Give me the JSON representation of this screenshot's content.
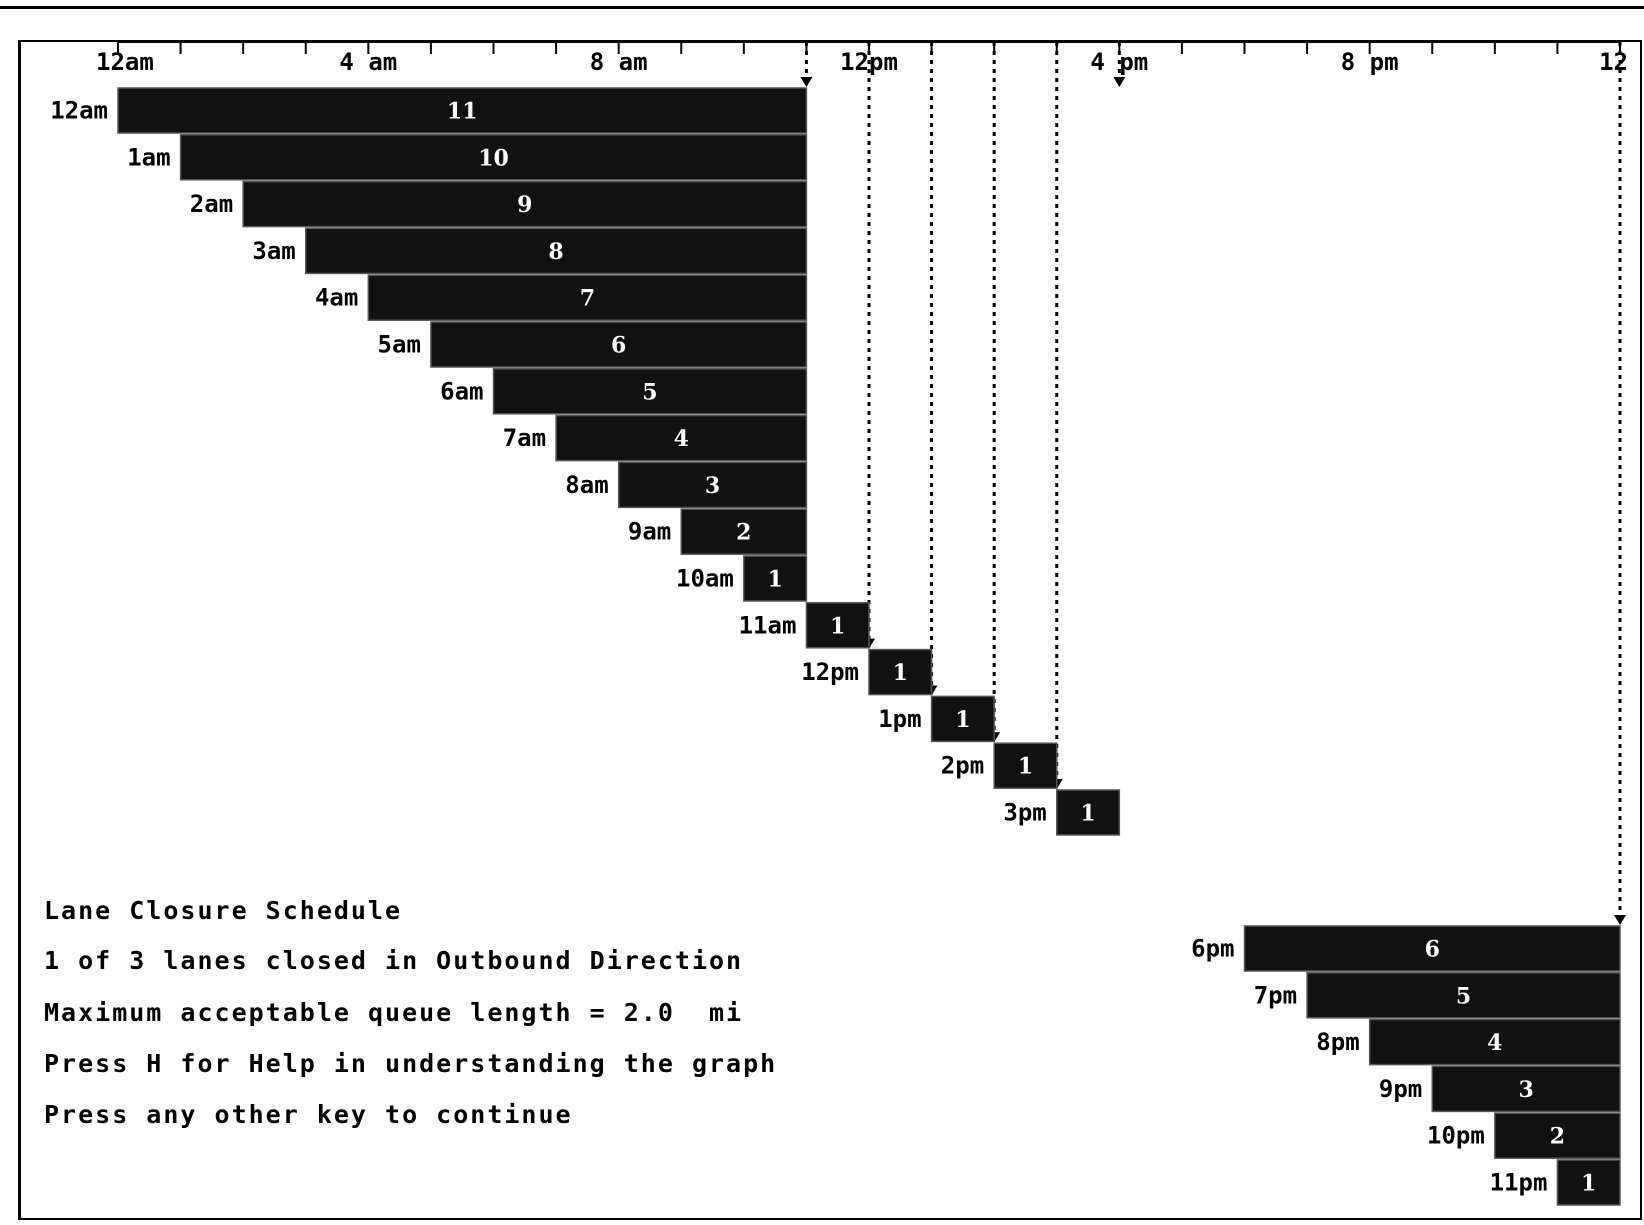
{
  "chart_data": {
    "type": "bar",
    "x_axis": {
      "unit": "hours",
      "range": [
        0,
        24
      ],
      "tick_labels": [
        {
          "label": "12am",
          "hour": 0
        },
        {
          "label": "4 am",
          "hour": 4
        },
        {
          "label": "8 am",
          "hour": 8
        },
        {
          "label": "12pm",
          "hour": 12
        },
        {
          "label": "4 pm",
          "hour": 16
        },
        {
          "label": "8 pm",
          "hour": 20
        },
        {
          "label": "12",
          "hour": 24
        }
      ]
    },
    "bars": [
      {
        "label": "12am",
        "start_hour": 0,
        "end_hour": 11,
        "value": "11"
      },
      {
        "label": "1am",
        "start_hour": 1,
        "end_hour": 11,
        "value": "10"
      },
      {
        "label": "2am",
        "start_hour": 2,
        "end_hour": 11,
        "value": "9"
      },
      {
        "label": "3am",
        "start_hour": 3,
        "end_hour": 11,
        "value": "8"
      },
      {
        "label": "4am",
        "start_hour": 4,
        "end_hour": 11,
        "value": "7"
      },
      {
        "label": "5am",
        "start_hour": 5,
        "end_hour": 11,
        "value": "6"
      },
      {
        "label": "6am",
        "start_hour": 6,
        "end_hour": 11,
        "value": "5"
      },
      {
        "label": "7am",
        "start_hour": 7,
        "end_hour": 11,
        "value": "4"
      },
      {
        "label": "8am",
        "start_hour": 8,
        "end_hour": 11,
        "value": "3"
      },
      {
        "label": "9am",
        "start_hour": 9,
        "end_hour": 11,
        "value": "2"
      },
      {
        "label": "10am",
        "start_hour": 10,
        "end_hour": 11,
        "value": "1"
      },
      {
        "label": "11am",
        "start_hour": 11,
        "end_hour": 12,
        "value": "1"
      },
      {
        "label": "12pm",
        "start_hour": 12,
        "end_hour": 13,
        "value": "1"
      },
      {
        "label": "1pm",
        "start_hour": 13,
        "end_hour": 14,
        "value": "1"
      },
      {
        "label": "2pm",
        "start_hour": 14,
        "end_hour": 15,
        "value": "1"
      },
      {
        "label": "3pm",
        "start_hour": 15,
        "end_hour": 16,
        "value": "1"
      },
      {
        "label": "6pm",
        "start_hour": 18,
        "end_hour": 24,
        "value": "6"
      },
      {
        "label": "7pm",
        "start_hour": 19,
        "end_hour": 24,
        "value": "5"
      },
      {
        "label": "8pm",
        "start_hour": 20,
        "end_hour": 24,
        "value": "4"
      },
      {
        "label": "9pm",
        "start_hour": 21,
        "end_hour": 24,
        "value": "3"
      },
      {
        "label": "10pm",
        "start_hour": 22,
        "end_hour": 24,
        "value": "2"
      },
      {
        "label": "11pm",
        "start_hour": 23,
        "end_hour": 24,
        "value": "1"
      }
    ],
    "guide_line_hours": [
      11,
      12,
      13,
      14,
      15,
      16,
      24
    ],
    "grid": false,
    "legend": "none"
  },
  "info": {
    "title": "Lane Closure Schedule",
    "lanes": "1 of 3 lanes closed in Outbound Direction",
    "queue": "Maximum acceptable queue length = 2.0  mi",
    "help": "Press H for Help in understanding the graph",
    "continue": "Press any other key to continue"
  },
  "colors": {
    "bar": "#111111",
    "bar_text": "#ffffff",
    "ink": "#000000",
    "background": "#ffffff"
  }
}
